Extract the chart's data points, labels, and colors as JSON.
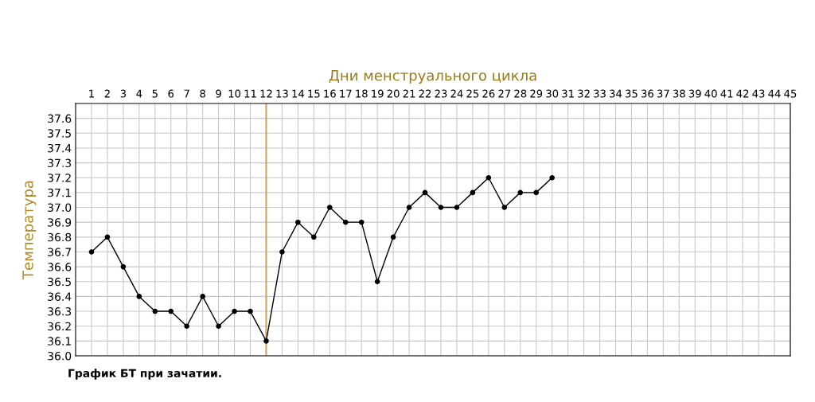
{
  "chart_data": {
    "type": "line",
    "xlabel": "Дни менструального цикла",
    "ylabel": "Температура",
    "x": [
      1,
      2,
      3,
      4,
      5,
      6,
      7,
      8,
      9,
      10,
      11,
      12,
      13,
      14,
      15,
      16,
      17,
      18,
      19,
      20,
      21,
      22,
      23,
      24,
      25,
      26,
      27,
      28,
      29,
      30
    ],
    "series": [
      {
        "color": "#000000",
        "values": [
          36.7,
          36.8,
          36.6,
          36.4,
          36.3,
          36.3,
          36.2,
          36.4,
          36.2,
          36.3,
          36.3,
          36.1,
          36.7,
          36.9,
          36.8,
          37.0,
          36.9,
          36.9,
          36.5,
          36.8,
          37.0,
          37.1,
          37.0,
          37.0,
          37.1,
          37.2,
          37.0,
          37.1,
          37.1,
          37.2
        ]
      }
    ],
    "xlim": [
      0,
      45
    ],
    "xticks": [
      1,
      2,
      3,
      4,
      5,
      6,
      7,
      8,
      9,
      10,
      11,
      12,
      13,
      14,
      15,
      16,
      17,
      18,
      19,
      20,
      21,
      22,
      23,
      24,
      25,
      26,
      27,
      28,
      29,
      30,
      31,
      32,
      33,
      34,
      35,
      36,
      37,
      38,
      39,
      40,
      41,
      42,
      43,
      44,
      45
    ],
    "ylim": [
      36.0,
      37.7
    ],
    "yticks": [
      {
        "value": 36.0,
        "label": "36.0"
      },
      36.1,
      36.2,
      36.3,
      36.4,
      36.5,
      36.6,
      36.7,
      36.8,
      36.9,
      {
        "value": 37.0,
        "label": "37.0"
      },
      37.1,
      37.2,
      37.3,
      37.4,
      37.5,
      37.6
    ],
    "ref_lines": [
      {
        "axis": "x",
        "value": 12,
        "color": "#d9a066"
      }
    ],
    "grid": true,
    "marker": "circle",
    "line_style": "solid",
    "annotations": [
      "График БТ при зачатии."
    ]
  }
}
